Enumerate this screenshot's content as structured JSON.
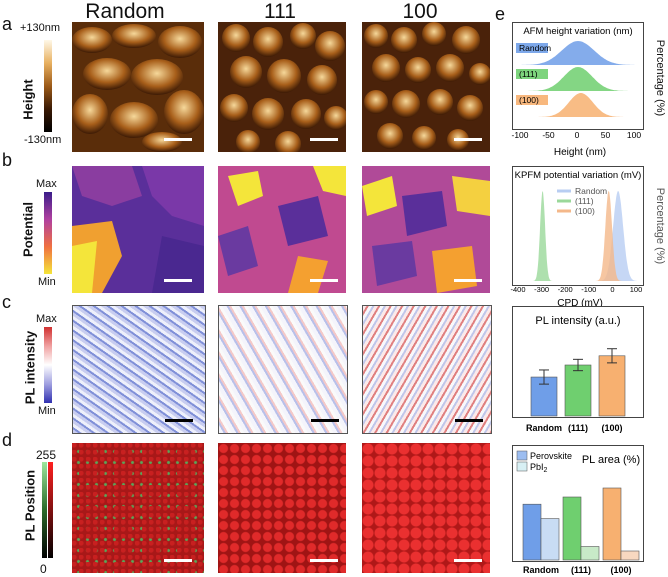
{
  "panel_letters": [
    "a",
    "b",
    "c",
    "d",
    "e"
  ],
  "column_titles": [
    "Random",
    "111",
    "100"
  ],
  "rows": {
    "height": {
      "label": "Height",
      "cb_max": "+130nm",
      "cb_min": "-130nm"
    },
    "potential": {
      "label": "Potential",
      "cb_max": "Max",
      "cb_min": "Min"
    },
    "pl_intensity": {
      "label": "PL intensity",
      "cb_max": "Max",
      "cb_min": "Min"
    },
    "pl_position": {
      "label": "PL Position",
      "cb_max": "255",
      "cb_min": "0"
    }
  },
  "colors": {
    "height_brown": "#8a4a12",
    "potential_purple": "#5a2f9a",
    "potential_yellow": "#f4e53a",
    "pl_red": "#cc1f1f",
    "random_blue": "#6f9ee8",
    "c111_green": "#6fcf6f",
    "c100_orange": "#f7b070"
  },
  "chart_data": [
    {
      "type": "area",
      "title": "AFM height variation (nm)",
      "xlabel": "Height (nm)",
      "ylabel": "Percentage (%)",
      "xlim": [
        -100,
        100
      ],
      "xticks": [
        -100,
        -50,
        0,
        50,
        100
      ],
      "series": [
        {
          "name": "Random",
          "center": 0,
          "width": 40
        },
        {
          "name": "(111)",
          "center": 0,
          "width": 35
        },
        {
          "name": "(100)",
          "center": 5,
          "width": 30
        }
      ]
    },
    {
      "type": "area",
      "title": "KPFM potential variation (mV)",
      "xlabel": "CPD (mV)",
      "ylabel": "Percentage (%)",
      "xlim": [
        -400,
        100
      ],
      "xticks": [
        -400,
        -300,
        -200,
        -100,
        0,
        100
      ],
      "series": [
        {
          "name": "Random",
          "center": 20,
          "width": 30
        },
        {
          "name": "(111)",
          "center": -300,
          "width": 15
        },
        {
          "name": "(100)",
          "center": -20,
          "width": 20
        }
      ]
    },
    {
      "type": "bar",
      "title": "PL intensity (a.u.)",
      "categories": [
        "Random",
        "(111)",
        "(100)"
      ],
      "values": [
        0.55,
        0.72,
        0.85
      ],
      "errors": [
        0.1,
        0.08,
        0.1
      ],
      "ylim": [
        0,
        1.2
      ]
    },
    {
      "type": "bar",
      "title": "PL area (%)",
      "categories": [
        "Random",
        "(111)",
        "(100)"
      ],
      "series": [
        {
          "name": "Perovskite",
          "values": [
            0.62,
            0.7,
            0.8
          ]
        },
        {
          "name": "PbI",
          "name_sub": "2",
          "values": [
            0.46,
            0.15,
            0.1
          ]
        }
      ],
      "ylim": [
        0,
        1
      ]
    }
  ]
}
